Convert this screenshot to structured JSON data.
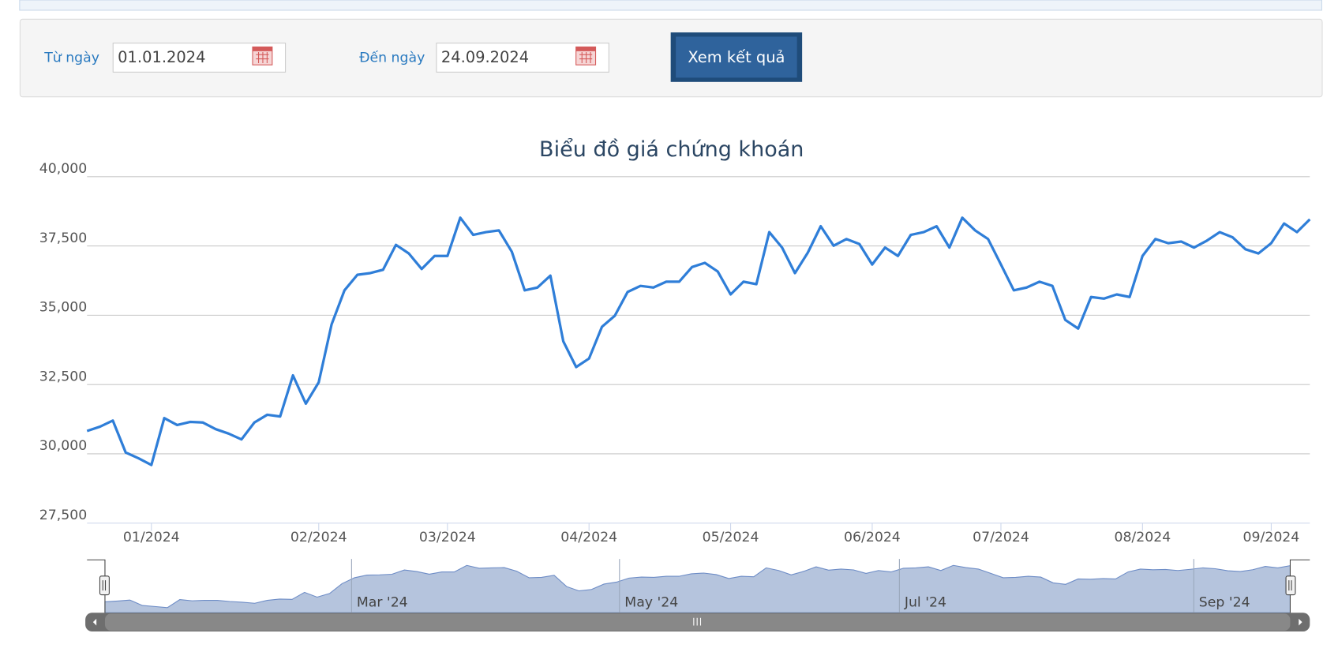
{
  "form": {
    "from_label": "Từ ngày",
    "from_value": "01.01.2024",
    "to_label": "Đến ngày",
    "to_value": "24.09.2024",
    "button": "Xem kết quả"
  },
  "chart_data": {
    "type": "line",
    "title": "Biểu đồ giá chứng khoán",
    "categories": [
      null,
      null,
      null,
      null,
      null,
      "01/2024",
      null,
      null,
      null,
      null,
      null,
      null,
      null,
      null,
      null,
      null,
      null,
      null,
      "02/2024",
      null,
      null,
      null,
      null,
      null,
      null,
      null,
      null,
      null,
      "03/2024",
      null,
      null,
      null,
      null,
      null,
      null,
      null,
      null,
      null,
      null,
      "04/2024",
      null,
      null,
      null,
      null,
      null,
      null,
      null,
      null,
      null,
      null,
      "05/2024",
      null,
      null,
      null,
      null,
      null,
      null,
      null,
      null,
      null,
      null,
      "06/2024",
      null,
      null,
      null,
      null,
      null,
      null,
      null,
      null,
      null,
      "07/2024",
      null,
      null,
      null,
      null,
      null,
      null,
      null,
      null,
      null,
      null,
      "08/2024",
      null,
      null,
      null,
      null,
      null,
      null,
      null,
      null,
      null,
      "09/2024",
      null,
      null,
      null
    ],
    "series": [
      {
        "name": "Giá",
        "color": "#2f7ed8",
        "values": [
          30825,
          30980,
          31200,
          30050,
          29840,
          29600,
          31290,
          31040,
          31150,
          31130,
          30890,
          30730,
          30520,
          31130,
          31410,
          31350,
          32830,
          31810,
          32580,
          34670,
          35900,
          36460,
          36520,
          36640,
          37540,
          37230,
          36670,
          37140,
          37140,
          38520,
          37900,
          38000,
          38060,
          37290,
          35900,
          36000,
          36430,
          34060,
          33130,
          33440,
          34580,
          34980,
          35840,
          36060,
          36000,
          36210,
          36210,
          36740,
          36890,
          36580,
          35750,
          36210,
          36120,
          38000,
          37440,
          36520,
          37260,
          38210,
          37510,
          37750,
          37570,
          36830,
          37440,
          37140,
          37900,
          38000,
          38210,
          37440,
          38520,
          38060,
          37750,
          36830,
          35900,
          36000,
          36210,
          36060,
          34830,
          34520,
          35660,
          35600,
          35750,
          35660,
          37140,
          37750,
          37600,
          37660,
          37440,
          37690,
          38000,
          37810,
          37380,
          37230,
          37600,
          38310,
          38000,
          38460
        ]
      }
    ],
    "ylim": [
      27500,
      40000
    ],
    "yticks": [
      {
        "value": 27500,
        "label": "27,500"
      },
      {
        "value": 30000,
        "label": "30,000"
      },
      {
        "value": 32500,
        "label": "32,500"
      },
      {
        "value": 35000,
        "label": "35,000"
      },
      {
        "value": 37500,
        "label": "37,500"
      },
      {
        "value": 40000,
        "label": "40,000"
      }
    ],
    "grid": true,
    "navigator_labels": [
      "Mar '24",
      "May '24",
      "Jul '24",
      "Sep '24"
    ]
  }
}
